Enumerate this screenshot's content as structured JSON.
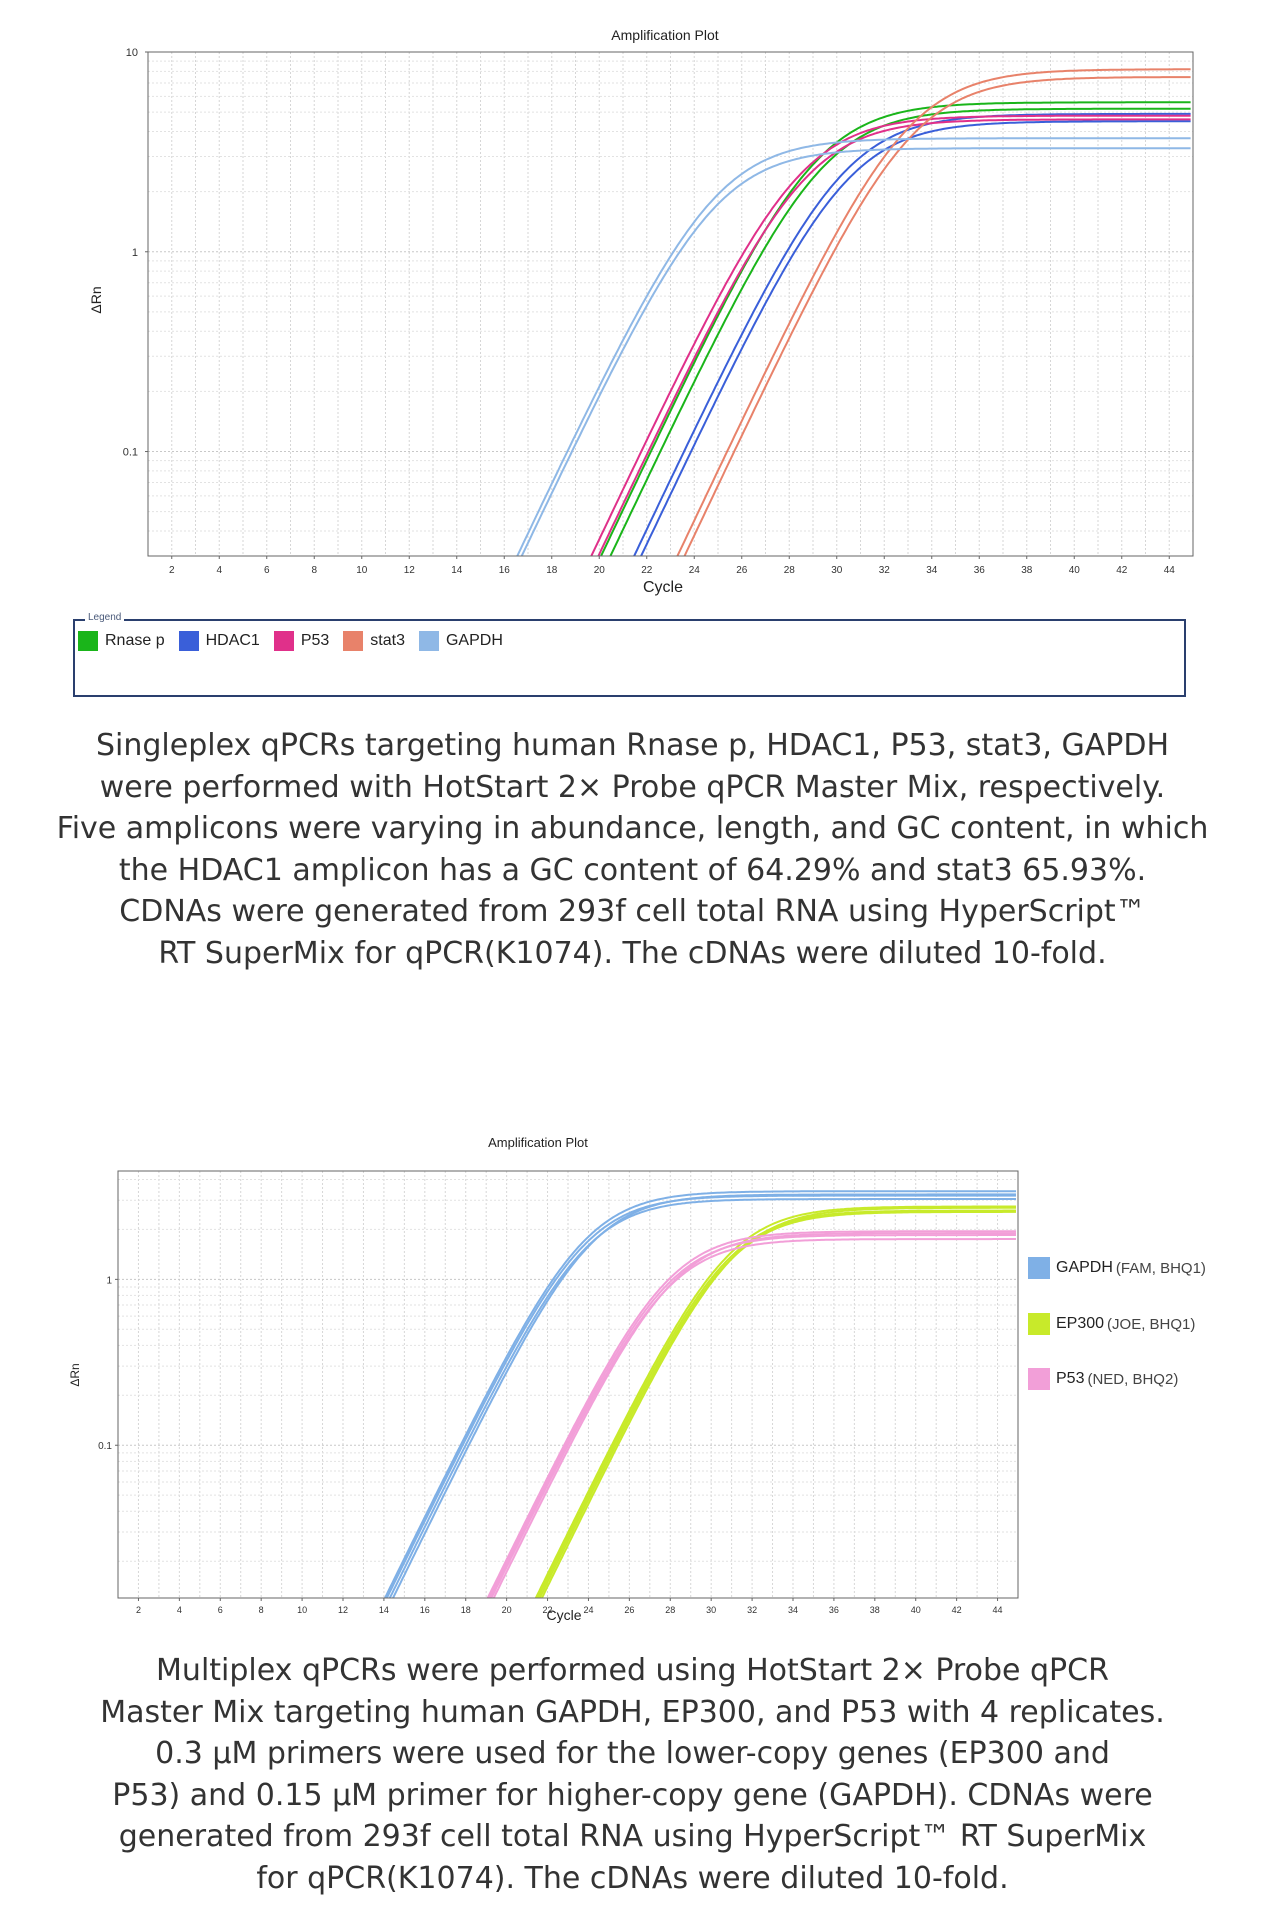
{
  "chart_data": [
    {
      "type": "line",
      "title": "Amplification Plot",
      "xlabel": "Cycle",
      "ylabel": "ΔRn",
      "yscale": "log",
      "xlim": [
        1,
        45
      ],
      "ylim": [
        0.03,
        10
      ],
      "xticks": [
        2,
        4,
        6,
        8,
        10,
        12,
        14,
        16,
        18,
        20,
        22,
        24,
        26,
        28,
        30,
        32,
        34,
        36,
        38,
        40,
        42,
        44
      ],
      "yticks": [
        0.1,
        1,
        10
      ],
      "grid": true,
      "legend_title": "Legend",
      "legend_position": "bottom",
      "series": [
        {
          "name": "Rnase p",
          "color": "#1ab51a",
          "replicates": [
            {
              "ct": 23.4,
              "plateau": 5.6
            },
            {
              "ct": 23.8,
              "plateau": 5.2
            }
          ]
        },
        {
          "name": "HDAC1",
          "color": "#3a5fd9",
          "replicates": [
            {
              "ct": 24.8,
              "plateau": 4.9
            },
            {
              "ct": 25.1,
              "plateau": 4.5
            }
          ]
        },
        {
          "name": "P53",
          "color": "#e0308a",
          "replicates": [
            {
              "ct": 23.0,
              "plateau": 4.8
            },
            {
              "ct": 23.3,
              "plateau": 4.6
            }
          ]
        },
        {
          "name": "stat3",
          "color": "#e8826a",
          "replicates": [
            {
              "ct": 26.6,
              "plateau": 8.2
            },
            {
              "ct": 26.9,
              "plateau": 7.5
            }
          ]
        },
        {
          "name": "GAPDH",
          "color": "#8fb8e6",
          "replicates": [
            {
              "ct": 19.9,
              "plateau": 3.7
            },
            {
              "ct": 20.1,
              "plateau": 3.3
            }
          ]
        }
      ]
    },
    {
      "type": "line",
      "title": "Amplification Plot",
      "xlabel": "Cycle",
      "ylabel": "ΔRn",
      "yscale": "log",
      "xlim": [
        1,
        45
      ],
      "ylim": [
        0.012,
        4.5
      ],
      "xticks": [
        2,
        4,
        6,
        8,
        10,
        12,
        14,
        16,
        18,
        20,
        22,
        24,
        26,
        28,
        30,
        32,
        34,
        36,
        38,
        40,
        42,
        44
      ],
      "yticks": [
        0.1,
        1
      ],
      "grid": true,
      "legend_position": "right",
      "series": [
        {
          "name": "GAPDH",
          "detail": "(FAM, BHQ1)",
          "color": "#7fb0e6",
          "replicates": [
            {
              "ct": 19.0,
              "plateau": 3.4
            },
            {
              "ct": 19.1,
              "plateau": 3.2
            },
            {
              "ct": 19.25,
              "plateau": 3.05
            },
            {
              "ct": 19.4,
              "plateau": 3.25
            }
          ]
        },
        {
          "name": "EP300",
          "detail": "(JOE, BHQ1)",
          "color": "#c8ea2a",
          "replicates": [
            {
              "ct": 26.4,
              "plateau": 2.75
            },
            {
              "ct": 26.5,
              "plateau": 2.6
            },
            {
              "ct": 26.6,
              "plateau": 2.55
            },
            {
              "ct": 26.7,
              "plateau": 2.7
            }
          ]
        },
        {
          "name": "P53",
          "detail": "(NED, BHQ2)",
          "color": "#f29fd8",
          "replicates": [
            {
              "ct": 24.1,
              "plateau": 1.95
            },
            {
              "ct": 24.2,
              "plateau": 1.85
            },
            {
              "ct": 24.3,
              "plateau": 1.75
            },
            {
              "ct": 24.4,
              "plateau": 1.9
            }
          ]
        }
      ]
    }
  ],
  "captions": {
    "first": [
      "Singleplex qPCRs targeting human Rnase p, HDAC1, P53, stat3, GAPDH",
      "were performed with HotStart 2× Probe qPCR Master Mix, respectively.",
      "Five amplicons were varying in abundance, length, and GC content, in which",
      "the HDAC1 amplicon has a GC content of 64.29% and stat3 65.93%.",
      "CDNAs were generated from 293f cell total RNA using HyperScript™",
      "RT SuperMix for qPCR(K1074). The cDNAs were diluted 10-fold."
    ],
    "second": [
      "Multiplex qPCRs were performed using HotStart 2× Probe qPCR",
      "Master Mix targeting human GAPDH, EP300, and P53 with 4 replicates.",
      "0.3 µM primers were used for the lower-copy genes (EP300 and",
      "P53) and 0.15 µM primer for higher-copy gene (GAPDH). CDNAs were",
      "generated from 293f cell total RNA using HyperScript™ RT SuperMix",
      "for qPCR(K1074). The cDNAs were diluted 10-fold."
    ]
  }
}
